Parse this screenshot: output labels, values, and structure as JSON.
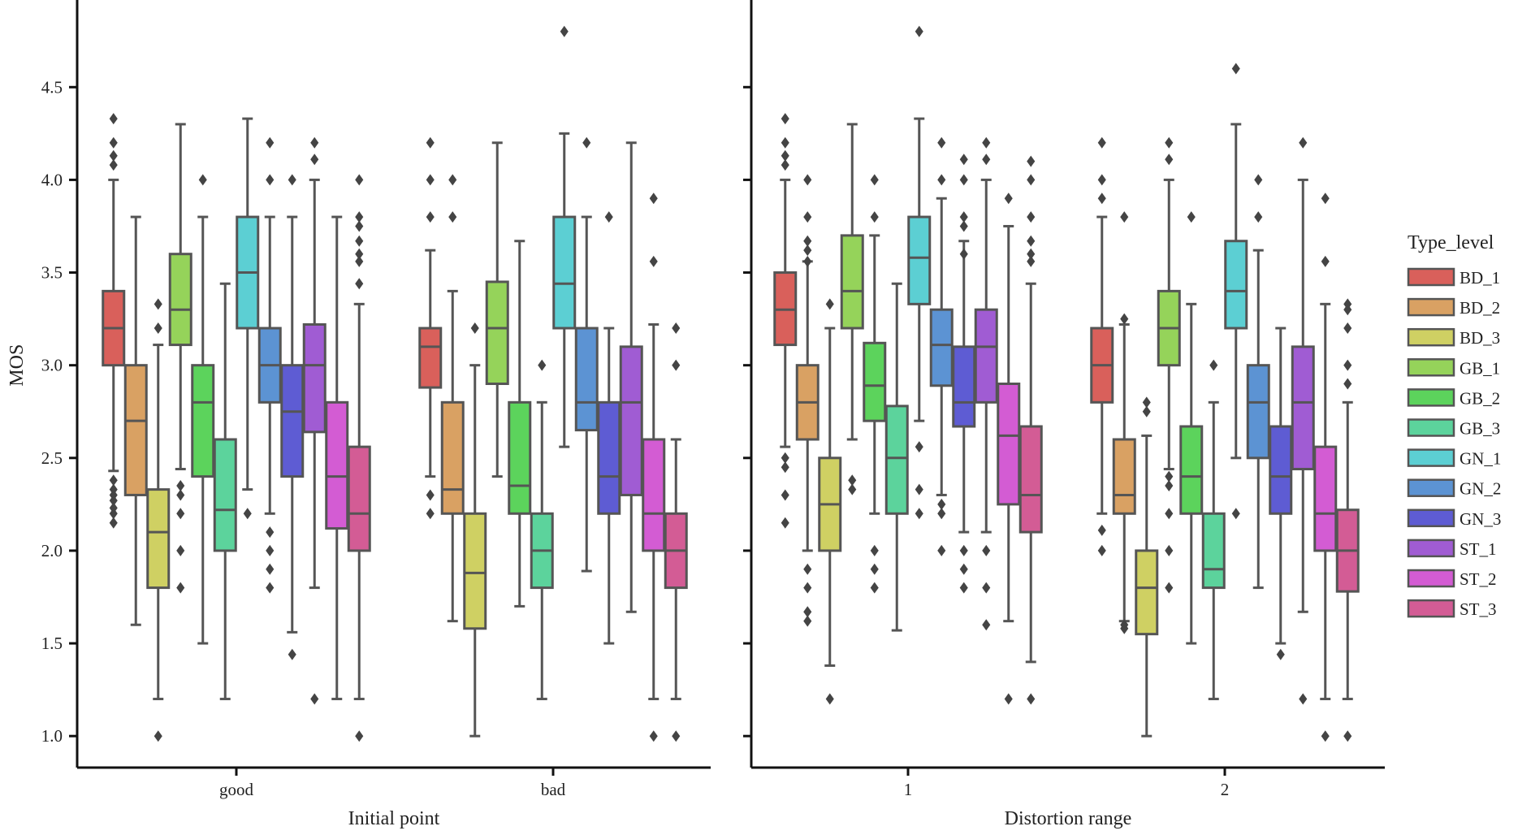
{
  "chart_data": [
    {
      "type": "box",
      "xlabel": "Initial point",
      "ylabel": "MOS",
      "ylim": [
        0.83,
        4.97
      ],
      "yticks": [
        "1.0",
        "1.5",
        "2.0",
        "2.5",
        "3.0",
        "3.5",
        "4.0",
        "4.5"
      ],
      "categories": [
        "good",
        "bad"
      ],
      "series": [
        {
          "name": "BD_1",
          "boxes": [
            {
              "category": "good",
              "whislo": 2.43,
              "q1": 3.0,
              "med": 3.2,
              "q3": 3.4,
              "whishi": 4.0,
              "fliers": [
                4.33,
                4.2,
                4.13,
                4.08,
                2.38,
                2.33,
                2.3,
                2.27,
                2.23,
                2.2,
                2.15
              ]
            },
            {
              "category": "bad",
              "whislo": 2.4,
              "q1": 2.88,
              "med": 3.1,
              "q3": 3.2,
              "whishi": 3.62,
              "fliers": [
                4.2,
                4.0,
                3.8,
                2.3,
                2.2
              ]
            }
          ]
        },
        {
          "name": "BD_2",
          "boxes": [
            {
              "category": "good",
              "whislo": 1.6,
              "q1": 2.3,
              "med": 2.7,
              "q3": 3.0,
              "whishi": 3.8,
              "fliers": []
            },
            {
              "category": "bad",
              "whislo": 1.62,
              "q1": 2.2,
              "med": 2.33,
              "q3": 2.8,
              "whishi": 3.4,
              "fliers": [
                4.0,
                3.8
              ]
            }
          ]
        },
        {
          "name": "BD_3",
          "boxes": [
            {
              "category": "good",
              "whislo": 1.2,
              "q1": 1.8,
              "med": 2.1,
              "q3": 2.33,
              "whishi": 3.11,
              "fliers": [
                3.33,
                3.2,
                1.0
              ]
            },
            {
              "category": "bad",
              "whislo": 1.0,
              "q1": 1.58,
              "med": 1.88,
              "q3": 2.2,
              "whishi": 3.0,
              "fliers": [
                3.2
              ]
            }
          ]
        },
        {
          "name": "GB_1",
          "boxes": [
            {
              "category": "good",
              "whislo": 2.44,
              "q1": 3.11,
              "med": 3.3,
              "q3": 3.6,
              "whishi": 4.3,
              "fliers": [
                2.35,
                2.3,
                2.2,
                2.0,
                1.8
              ]
            },
            {
              "category": "bad",
              "whislo": 2.4,
              "q1": 2.9,
              "med": 3.2,
              "q3": 3.45,
              "whishi": 4.2,
              "fliers": []
            }
          ]
        },
        {
          "name": "GB_2",
          "boxes": [
            {
              "category": "good",
              "whislo": 1.5,
              "q1": 2.4,
              "med": 2.8,
              "q3": 3.0,
              "whishi": 3.8,
              "fliers": [
                4.0
              ]
            },
            {
              "category": "bad",
              "whislo": 1.7,
              "q1": 2.2,
              "med": 2.35,
              "q3": 2.8,
              "whishi": 3.67,
              "fliers": []
            }
          ]
        },
        {
          "name": "GB_3",
          "boxes": [
            {
              "category": "good",
              "whislo": 1.2,
              "q1": 2.0,
              "med": 2.22,
              "q3": 2.6,
              "whishi": 3.44,
              "fliers": []
            },
            {
              "category": "bad",
              "whislo": 1.2,
              "q1": 1.8,
              "med": 2.0,
              "q3": 2.2,
              "whishi": 2.8,
              "fliers": [
                3.0
              ]
            }
          ]
        },
        {
          "name": "GN_1",
          "boxes": [
            {
              "category": "good",
              "whislo": 2.33,
              "q1": 3.2,
              "med": 3.5,
              "q3": 3.8,
              "whishi": 4.33,
              "fliers": [
                2.2
              ]
            },
            {
              "category": "bad",
              "whislo": 2.56,
              "q1": 3.2,
              "med": 3.44,
              "q3": 3.8,
              "whishi": 4.25,
              "fliers": [
                4.8
              ]
            }
          ]
        },
        {
          "name": "GN_2",
          "boxes": [
            {
              "category": "good",
              "whislo": 2.2,
              "q1": 2.8,
              "med": 3.0,
              "q3": 3.2,
              "whishi": 3.8,
              "fliers": [
                4.2,
                4.0,
                2.1,
                2.0,
                1.9,
                1.8
              ]
            },
            {
              "category": "bad",
              "whislo": 1.89,
              "q1": 2.65,
              "med": 2.8,
              "q3": 3.2,
              "whishi": 3.8,
              "fliers": [
                4.2
              ]
            }
          ]
        },
        {
          "name": "GN_3",
          "boxes": [
            {
              "category": "good",
              "whislo": 1.56,
              "q1": 2.4,
              "med": 2.75,
              "q3": 3.0,
              "whishi": 3.8,
              "fliers": [
                4.0,
                1.44
              ]
            },
            {
              "category": "bad",
              "whislo": 1.5,
              "q1": 2.2,
              "med": 2.4,
              "q3": 2.8,
              "whishi": 3.2,
              "fliers": [
                3.8
              ]
            }
          ]
        },
        {
          "name": "ST_1",
          "boxes": [
            {
              "category": "good",
              "whislo": 1.8,
              "q1": 2.64,
              "med": 3.0,
              "q3": 3.22,
              "whishi": 4.0,
              "fliers": [
                4.2,
                4.11,
                1.2
              ]
            },
            {
              "category": "bad",
              "whislo": 1.67,
              "q1": 2.3,
              "med": 2.8,
              "q3": 3.1,
              "whishi": 4.2,
              "fliers": []
            }
          ]
        },
        {
          "name": "ST_2",
          "boxes": [
            {
              "category": "good",
              "whislo": 1.2,
              "q1": 2.12,
              "med": 2.4,
              "q3": 2.8,
              "whishi": 3.8,
              "fliers": []
            },
            {
              "category": "bad",
              "whislo": 1.2,
              "q1": 2.0,
              "med": 2.2,
              "q3": 2.6,
              "whishi": 3.22,
              "fliers": [
                3.9,
                3.56,
                1.0
              ]
            }
          ]
        },
        {
          "name": "ST_3",
          "boxes": [
            {
              "category": "good",
              "whislo": 1.2,
              "q1": 2.0,
              "med": 2.2,
              "q3": 2.56,
              "whishi": 3.33,
              "fliers": [
                4.0,
                3.8,
                3.75,
                3.67,
                3.6,
                3.56,
                3.44,
                1.0
              ]
            },
            {
              "category": "bad",
              "whislo": 1.2,
              "q1": 1.8,
              "med": 2.0,
              "q3": 2.2,
              "whishi": 2.6,
              "fliers": [
                3.2,
                3.0,
                1.0
              ]
            }
          ]
        }
      ]
    },
    {
      "type": "box",
      "xlabel": "Distortion range",
      "ylabel": "",
      "ylim": [
        0.83,
        4.97
      ],
      "yticks": [],
      "categories": [
        "1",
        "2"
      ],
      "series": [
        {
          "name": "BD_1",
          "boxes": [
            {
              "category": "1",
              "whislo": 2.56,
              "q1": 3.11,
              "med": 3.3,
              "q3": 3.5,
              "whishi": 4.0,
              "fliers": [
                4.33,
                4.2,
                4.13,
                4.08,
                2.5,
                2.45,
                2.3,
                2.15
              ]
            },
            {
              "category": "2",
              "whislo": 2.2,
              "q1": 2.8,
              "med": 3.0,
              "q3": 3.2,
              "whishi": 3.8,
              "fliers": [
                4.2,
                4.0,
                3.9,
                2.11,
                2.0
              ]
            }
          ]
        },
        {
          "name": "BD_2",
          "boxes": [
            {
              "category": "1",
              "whislo": 2.0,
              "q1": 2.6,
              "med": 2.8,
              "q3": 3.0,
              "whishi": 3.56,
              "fliers": [
                4.0,
                3.8,
                3.67,
                3.62,
                3.56,
                1.9,
                1.8,
                1.67,
                1.62
              ]
            },
            {
              "category": "2",
              "whislo": 1.62,
              "q1": 2.2,
              "med": 2.3,
              "q3": 2.6,
              "whishi": 3.22,
              "fliers": [
                3.8,
                3.25,
                1.6,
                1.58
              ]
            }
          ]
        },
        {
          "name": "BD_3",
          "boxes": [
            {
              "category": "1",
              "whislo": 1.38,
              "q1": 2.0,
              "med": 2.25,
              "q3": 2.5,
              "whishi": 3.2,
              "fliers": [
                3.33,
                1.2
              ]
            },
            {
              "category": "2",
              "whislo": 1.0,
              "q1": 1.55,
              "med": 1.8,
              "q3": 2.0,
              "whishi": 2.62,
              "fliers": [
                2.8,
                2.75
              ]
            }
          ]
        },
        {
          "name": "GB_1",
          "boxes": [
            {
              "category": "1",
              "whislo": 2.6,
              "q1": 3.2,
              "med": 3.4,
              "q3": 3.7,
              "whishi": 4.3,
              "fliers": [
                2.38,
                2.33
              ]
            },
            {
              "category": "2",
              "whislo": 2.44,
              "q1": 3.0,
              "med": 3.2,
              "q3": 3.4,
              "whishi": 4.0,
              "fliers": [
                4.2,
                4.11,
                2.4,
                2.35,
                2.2,
                2.0,
                1.8
              ]
            }
          ]
        },
        {
          "name": "GB_2",
          "boxes": [
            {
              "category": "1",
              "whislo": 2.2,
              "q1": 2.7,
              "med": 2.89,
              "q3": 3.12,
              "whishi": 3.7,
              "fliers": [
                4.0,
                3.8,
                2.0,
                1.9,
                1.8
              ]
            },
            {
              "category": "2",
              "whislo": 1.5,
              "q1": 2.2,
              "med": 2.4,
              "q3": 2.67,
              "whishi": 3.33,
              "fliers": [
                3.8
              ]
            }
          ]
        },
        {
          "name": "GB_3",
          "boxes": [
            {
              "category": "1",
              "whislo": 1.57,
              "q1": 2.2,
              "med": 2.5,
              "q3": 2.78,
              "whishi": 3.44,
              "fliers": []
            },
            {
              "category": "2",
              "whislo": 1.2,
              "q1": 1.8,
              "med": 1.9,
              "q3": 2.2,
              "whishi": 2.8,
              "fliers": [
                3.0
              ]
            }
          ]
        },
        {
          "name": "GN_1",
          "boxes": [
            {
              "category": "1",
              "whislo": 2.7,
              "q1": 3.33,
              "med": 3.58,
              "q3": 3.8,
              "whishi": 4.33,
              "fliers": [
                4.8,
                2.56,
                2.33,
                2.2
              ]
            },
            {
              "category": "2",
              "whislo": 2.5,
              "q1": 3.2,
              "med": 3.4,
              "q3": 3.67,
              "whishi": 4.3,
              "fliers": [
                4.6,
                2.2
              ]
            }
          ]
        },
        {
          "name": "GN_2",
          "boxes": [
            {
              "category": "1",
              "whislo": 2.3,
              "q1": 2.89,
              "med": 3.11,
              "q3": 3.3,
              "whishi": 3.9,
              "fliers": [
                4.2,
                4.0,
                2.25,
                2.2,
                2.0
              ]
            },
            {
              "category": "2",
              "whislo": 1.8,
              "q1": 2.5,
              "med": 2.8,
              "q3": 3.0,
              "whishi": 3.62,
              "fliers": [
                4.0,
                3.8
              ]
            }
          ]
        },
        {
          "name": "GN_3",
          "boxes": [
            {
              "category": "1",
              "whislo": 2.1,
              "q1": 2.67,
              "med": 2.8,
              "q3": 3.1,
              "whishi": 3.67,
              "fliers": [
                4.11,
                4.0,
                3.8,
                3.75,
                3.6,
                2.0,
                1.9,
                1.8
              ]
            },
            {
              "category": "2",
              "whislo": 1.5,
              "q1": 2.2,
              "med": 2.4,
              "q3": 2.67,
              "whishi": 3.2,
              "fliers": [
                1.44
              ]
            }
          ]
        },
        {
          "name": "ST_1",
          "boxes": [
            {
              "category": "1",
              "whislo": 2.1,
              "q1": 2.8,
              "med": 3.1,
              "q3": 3.3,
              "whishi": 4.0,
              "fliers": [
                4.2,
                4.11,
                2.0,
                1.8,
                1.6
              ]
            },
            {
              "category": "2",
              "whislo": 1.67,
              "q1": 2.44,
              "med": 2.8,
              "q3": 3.1,
              "whishi": 4.0,
              "fliers": [
                4.2,
                1.2
              ]
            }
          ]
        },
        {
          "name": "ST_2",
          "boxes": [
            {
              "category": "1",
              "whislo": 1.62,
              "q1": 2.25,
              "med": 2.62,
              "q3": 2.9,
              "whishi": 3.75,
              "fliers": [
                3.9,
                1.2
              ]
            },
            {
              "category": "2",
              "whislo": 1.2,
              "q1": 2.0,
              "med": 2.2,
              "q3": 2.56,
              "whishi": 3.33,
              "fliers": [
                3.9,
                3.56,
                1.0
              ]
            }
          ]
        },
        {
          "name": "ST_3",
          "boxes": [
            {
              "category": "1",
              "whislo": 1.4,
              "q1": 2.1,
              "med": 2.3,
              "q3": 2.67,
              "whishi": 3.44,
              "fliers": [
                4.1,
                4.0,
                3.8,
                3.67,
                3.6,
                3.56,
                1.2
              ]
            },
            {
              "category": "2",
              "whislo": 1.2,
              "q1": 1.78,
              "med": 2.0,
              "q3": 2.22,
              "whishi": 2.8,
              "fliers": [
                3.33,
                3.3,
                3.2,
                3.0,
                2.9,
                1.0
              ]
            }
          ]
        }
      ]
    }
  ],
  "legend": {
    "title": "Type_level",
    "entries": [
      {
        "label": "BD_1",
        "color": "#d9605b"
      },
      {
        "label": "BD_2",
        "color": "#d9a163"
      },
      {
        "label": "BD_3",
        "color": "#cfd063"
      },
      {
        "label": "GB_1",
        "color": "#95d35a"
      },
      {
        "label": "GB_2",
        "color": "#5cd35c"
      },
      {
        "label": "GB_3",
        "color": "#5cd39c"
      },
      {
        "label": "GN_1",
        "color": "#5ccfd3"
      },
      {
        "label": "GN_2",
        "color": "#5c93d3"
      },
      {
        "label": "GN_3",
        "color": "#5e5cd3"
      },
      {
        "label": "ST_1",
        "color": "#a05cd3"
      },
      {
        "label": "ST_2",
        "color": "#d35cd3"
      },
      {
        "label": "ST_3",
        "color": "#d35c95"
      }
    ]
  }
}
